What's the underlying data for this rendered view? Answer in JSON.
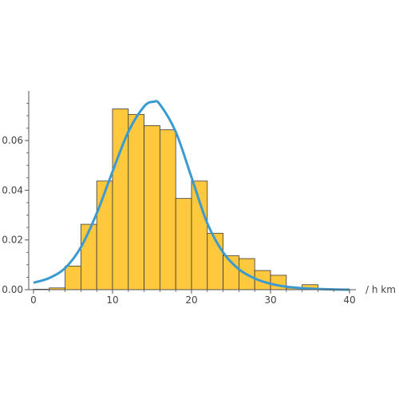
{
  "chart_data": {
    "type": "bar",
    "subtype": "histogram-with-density-curve",
    "title": "",
    "xlabel": "/ h km",
    "ylabel": "",
    "xlim": [
      0,
      40
    ],
    "ylim": [
      0,
      0.078
    ],
    "x_ticks": [
      0,
      10,
      20,
      30,
      40
    ],
    "x_tick_labels": [
      "0",
      "10",
      "20",
      "30",
      "40"
    ],
    "y_ticks": [
      0.0,
      0.02,
      0.04,
      0.06
    ],
    "y_tick_labels": [
      "0.00",
      "0.02",
      "0.04",
      "0.06"
    ],
    "grid": false,
    "bin_width": 2,
    "bins": [
      {
        "x0": 0,
        "x1": 2,
        "value": 0.0002
      },
      {
        "x0": 2,
        "x1": 4,
        "value": 0.0007
      },
      {
        "x0": 4,
        "x1": 6,
        "value": 0.0095
      },
      {
        "x0": 6,
        "x1": 8,
        "value": 0.0263
      },
      {
        "x0": 8,
        "x1": 10,
        "value": 0.0437
      },
      {
        "x0": 10,
        "x1": 12,
        "value": 0.0727
      },
      {
        "x0": 12,
        "x1": 14,
        "value": 0.0705
      },
      {
        "x0": 14,
        "x1": 16,
        "value": 0.066
      },
      {
        "x0": 16,
        "x1": 18,
        "value": 0.0643
      },
      {
        "x0": 18,
        "x1": 20,
        "value": 0.0367
      },
      {
        "x0": 20,
        "x1": 22,
        "value": 0.0437
      },
      {
        "x0": 22,
        "x1": 24,
        "value": 0.0227
      },
      {
        "x0": 24,
        "x1": 26,
        "value": 0.0137
      },
      {
        "x0": 26,
        "x1": 28,
        "value": 0.0125
      },
      {
        "x0": 28,
        "x1": 30,
        "value": 0.0077
      },
      {
        "x0": 30,
        "x1": 32,
        "value": 0.0058
      },
      {
        "x0": 32,
        "x1": 34,
        "value": 0.0007
      },
      {
        "x0": 34,
        "x1": 36,
        "value": 0.002
      },
      {
        "x0": 36,
        "x1": 38,
        "value": 0.0004
      }
    ],
    "curve": {
      "points": [
        [
          0,
          0.0028
        ],
        [
          2,
          0.0047
        ],
        [
          4,
          0.0087
        ],
        [
          6,
          0.0171
        ],
        [
          8,
          0.0307
        ],
        [
          10,
          0.0475
        ],
        [
          12,
          0.0635
        ],
        [
          14,
          0.0737
        ],
        [
          15.2,
          0.0756
        ],
        [
          16,
          0.0745
        ],
        [
          18,
          0.0635
        ],
        [
          20,
          0.0452
        ],
        [
          22,
          0.0267
        ],
        [
          24,
          0.015
        ],
        [
          26,
          0.0082
        ],
        [
          28,
          0.0045
        ],
        [
          30,
          0.0024
        ],
        [
          32,
          0.0012
        ],
        [
          34,
          0.0006
        ],
        [
          36,
          0.0003
        ],
        [
          38,
          0.0001
        ],
        [
          40,
          0.0
        ]
      ]
    },
    "colors": {
      "bar_fill": "#FFC83D",
      "bar_edge": "#3a3a3a",
      "curve": "#3B9AD0",
      "axis": "#555555"
    }
  }
}
